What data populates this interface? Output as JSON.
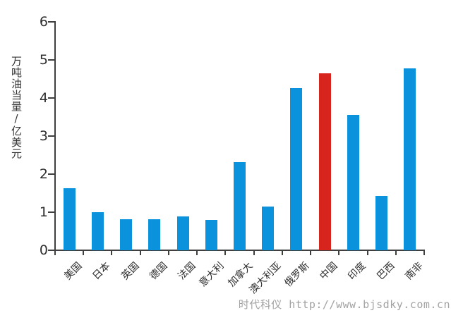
{
  "chart_data": {
    "type": "bar",
    "title": "",
    "xlabel": "",
    "ylabel": "万吨油当量/亿美元",
    "categories": [
      "美国",
      "日本",
      "英国",
      "德国",
      "法国",
      "意大利",
      "加拿大",
      "澳大利亚",
      "俄罗斯",
      "中国",
      "印度",
      "巴西",
      "南非"
    ],
    "values": [
      1.63,
      1.0,
      0.81,
      0.82,
      0.88,
      0.8,
      2.32,
      1.14,
      4.25,
      4.64,
      3.56,
      1.42,
      4.77
    ],
    "highlight_category": "中国",
    "highlight_index": 9,
    "ylim": [
      0,
      6
    ],
    "yticks": [
      0,
      1,
      2,
      3,
      4,
      5,
      6
    ],
    "grid": false,
    "legend": "none",
    "bar_color": "#0a93dc",
    "highlight_color": "#d7241d"
  },
  "colors": {
    "axis": "#3f3f3f",
    "text": "#2e2e2e",
    "watermark": "#a2a2a2"
  },
  "watermark": {
    "text": "时代科仪 http://www.bjsdky.com.cn"
  }
}
